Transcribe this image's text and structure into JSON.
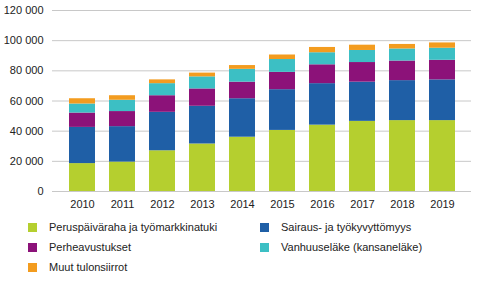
{
  "chart_data": {
    "type": "bar",
    "stacked": true,
    "grid": true,
    "legend": "bottom",
    "categories": [
      "2010",
      "2011",
      "2012",
      "2013",
      "2014",
      "2015",
      "2016",
      "2017",
      "2018",
      "2019"
    ],
    "series": [
      {
        "name": "Peruspäiväraha ja työmarkkinatuki",
        "color": "#b5cf2f",
        "values": [
          18500,
          19500,
          27000,
          31500,
          36000,
          40500,
          44000,
          46500,
          47000,
          47000
        ]
      },
      {
        "name": "Sairaus- ja työkyvyttömyys",
        "color": "#1f5fa6",
        "values": [
          24000,
          23500,
          25500,
          25000,
          25500,
          27000,
          27500,
          26000,
          26500,
          27000
        ]
      },
      {
        "name": "Perheavustukset",
        "color": "#8c1279",
        "values": [
          9500,
          10000,
          11000,
          11500,
          11000,
          11500,
          12500,
          13000,
          13000,
          13000
        ]
      },
      {
        "name": "Vanhuuseläke (kansaneläke)",
        "color": "#3cbfc4",
        "values": [
          6000,
          7500,
          8000,
          8000,
          8500,
          8500,
          8000,
          8000,
          8000,
          8000
        ]
      },
      {
        "name": "Muut tulonsiirrot",
        "color": "#f39c1f",
        "values": [
          3500,
          3000,
          2500,
          2500,
          2500,
          3000,
          3500,
          3500,
          3000,
          3500
        ]
      }
    ],
    "ylim": [
      0,
      120000
    ],
    "yticks": [
      0,
      {
        "value": 20000,
        "label": "20 000"
      },
      {
        "value": 40000,
        "label": "40 000"
      },
      {
        "value": 60000,
        "label": "60 000"
      },
      {
        "value": 80000,
        "label": "80 000"
      },
      {
        "value": 100000,
        "label": "100 000"
      },
      {
        "value": 120000,
        "label": "120 000"
      }
    ]
  }
}
